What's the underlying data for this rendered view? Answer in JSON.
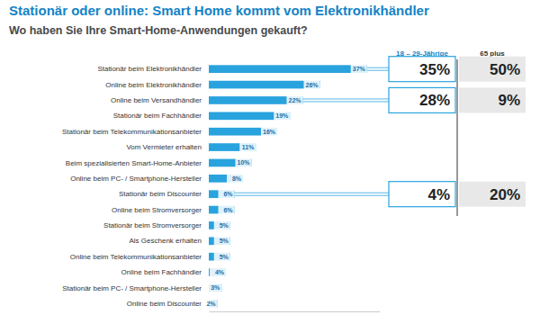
{
  "chart_data": {
    "type": "bar",
    "orientation": "horizontal",
    "title": "Stationär oder online: Smart Home kommt vom Elektronikhändler",
    "subtitle": "Wo haben Sie Ihre Smart-Home-Anwendungen gekauft?",
    "categories": [
      "Stationär beim Elektronikhändler",
      "Online beim Elektronikhändler",
      "Online beim Versandhändler",
      "Stationär beim Fachhändler",
      "Stationär beim Telekommunikationsanbieter",
      "Vom Vermieter erhalten",
      "Beim spezialisierten Smart-Home-Anbieter",
      "Online beim PC- / Smartphone-Hersteller",
      "Stationär beim Discounter",
      "Online beim Stromversorger",
      "Stationär beim Stromversorger",
      "Als Geschenk erhalten",
      "Online beim Telekommunikationsanbieter",
      "Online beim Fachhändler",
      "Stationär beim PC- / Smartphone-Hersteller",
      "Online beim Discounter"
    ],
    "values": [
      37,
      26,
      22,
      19,
      16,
      11,
      10,
      8,
      6,
      6,
      5,
      5,
      5,
      4,
      3,
      2
    ],
    "value_labels": [
      "37%",
      "26%",
      "22%",
      "19%",
      "16%",
      "11%",
      "10%",
      "8%",
      "6%",
      "6%",
      "5%",
      "5%",
      "5%",
      "4%",
      "3%",
      "2%"
    ],
    "color": "#29a3dd",
    "data_labels": true,
    "tick_labels": false,
    "grid": false,
    "xlim": [
      0,
      40
    ],
    "comparison_series": [
      {
        "name": "18 – 29-Jährige",
        "color": "#29a3dd",
        "values": [
          35,
          null,
          28,
          null,
          null,
          null,
          null,
          null,
          4,
          null,
          null,
          null,
          null,
          null,
          null,
          null
        ],
        "value_labels": [
          "35%",
          null,
          "28%",
          null,
          null,
          null,
          null,
          null,
          "4%",
          null,
          null,
          null,
          null,
          null,
          null,
          null
        ]
      },
      {
        "name": "65 plus",
        "color": "#e8e8e8",
        "values": [
          50,
          null,
          9,
          null,
          null,
          null,
          null,
          null,
          20,
          null,
          null,
          null,
          null,
          null,
          null,
          null
        ],
        "value_labels": [
          "50%",
          null,
          "9%",
          null,
          null,
          null,
          null,
          null,
          "20%",
          null,
          null,
          null,
          null,
          null,
          null,
          null
        ]
      }
    ]
  }
}
